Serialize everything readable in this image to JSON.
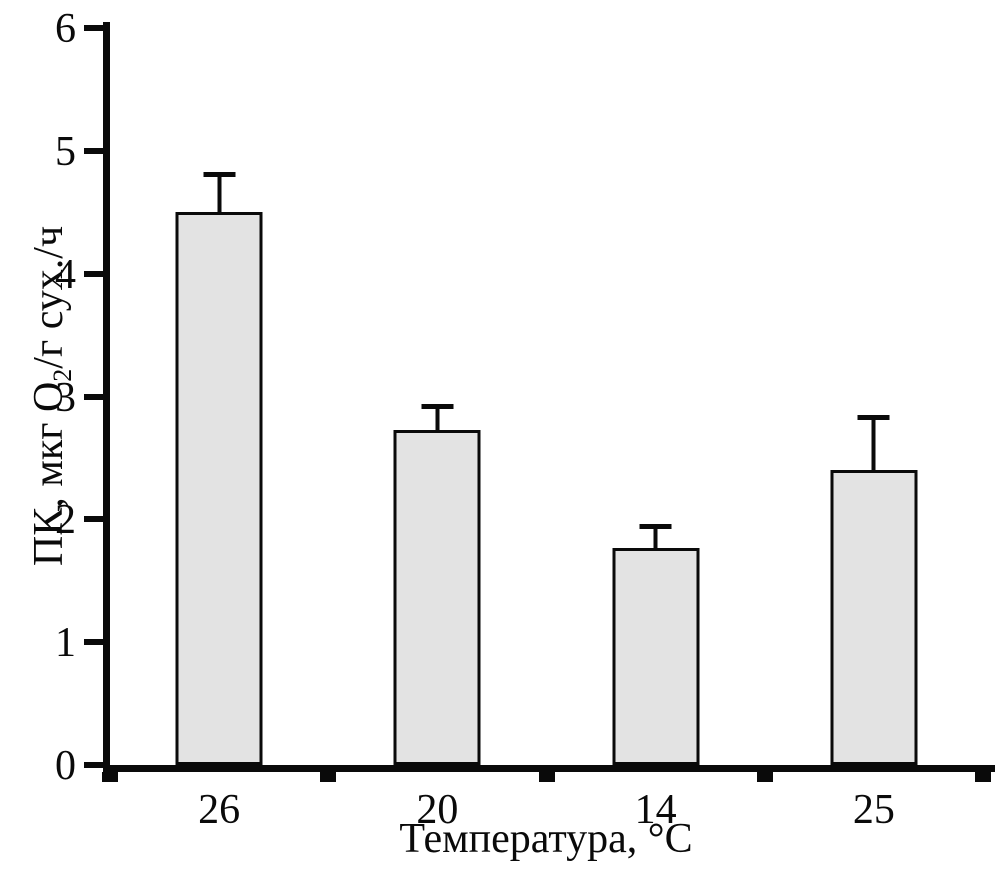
{
  "chart_data": {
    "type": "bar",
    "categories": [
      "26",
      "20",
      "14",
      "25"
    ],
    "values": [
      4.5,
      2.73,
      1.77,
      2.4
    ],
    "errors": [
      0.35,
      0.23,
      0.22,
      0.47
    ],
    "title": "",
    "xlabel": "Температура, °С",
    "ylabel": "ПК, мкг О2/г сух./ч",
    "ylabel_parts": {
      "pre": "ПК, мкг О",
      "sub": "2",
      "post": "/г сух./ч"
    },
    "ylim": [
      0,
      6
    ],
    "ytick_step": 1,
    "yticks": [
      0,
      1,
      2,
      3,
      4,
      5,
      6
    ],
    "grid": false,
    "legend": false,
    "bar_fill": "#e3e3e3",
    "bar_border": "#0a0a0a",
    "axis_color": "#0a0a0a"
  }
}
